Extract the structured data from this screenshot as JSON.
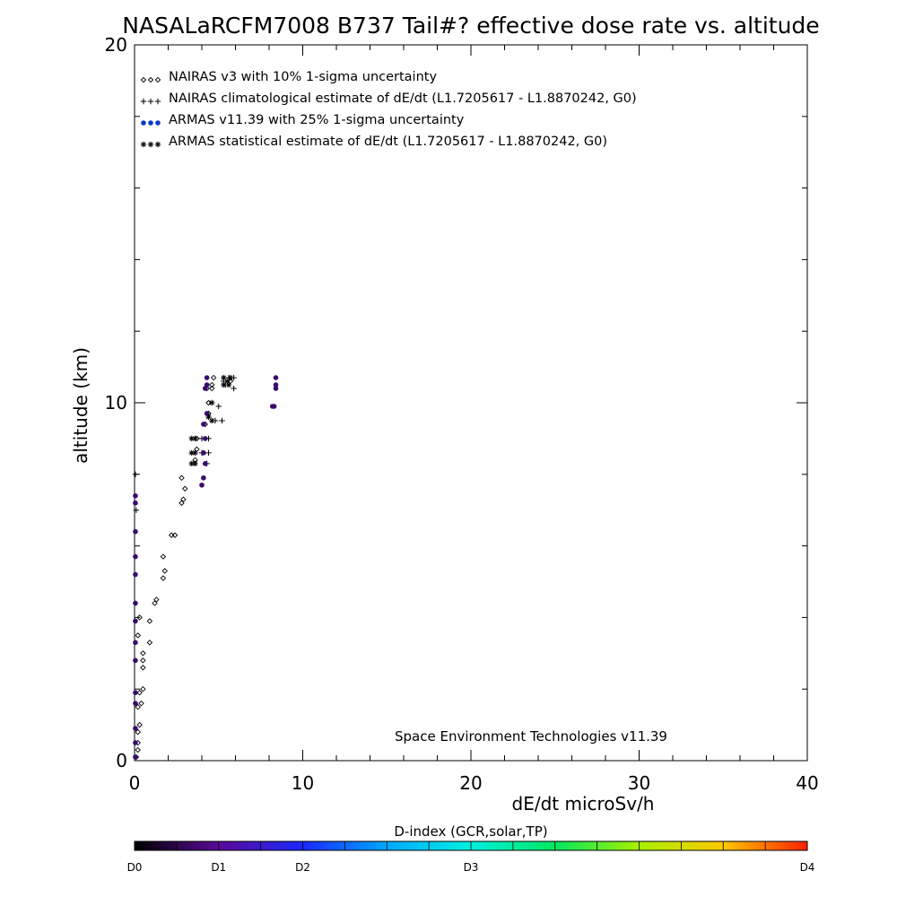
{
  "chart_data": {
    "type": "scatter",
    "title": "NASALaRCFM7008  B737 Tail#? effective dose rate vs. altitude",
    "xlabel": "dE/dt microSv/h",
    "ylabel": "altitude (km)",
    "xlim": [
      0,
      40
    ],
    "ylim": [
      0,
      20
    ],
    "x_tick_labels": [
      0,
      10,
      20,
      30,
      40
    ],
    "y_tick_labels": [
      0,
      10,
      20
    ],
    "grid": false,
    "legend_position": "top-left",
    "series": [
      {
        "name": "NAIRAS v3 with 10% 1-sigma uncertainty",
        "marker": "diamond",
        "color": "#000000",
        "points": [
          [
            0.1,
            0.1
          ],
          [
            0.2,
            0.3
          ],
          [
            0.2,
            0.5
          ],
          [
            0.2,
            0.8
          ],
          [
            0.3,
            1.0
          ],
          [
            0.2,
            1.5
          ],
          [
            0.4,
            1.6
          ],
          [
            0.3,
            1.9
          ],
          [
            0.5,
            2.0
          ],
          [
            0.5,
            2.6
          ],
          [
            0.5,
            2.8
          ],
          [
            0.5,
            3.0
          ],
          [
            0.9,
            3.3
          ],
          [
            0.2,
            3.5
          ],
          [
            0.9,
            3.9
          ],
          [
            0.3,
            4.0
          ],
          [
            1.2,
            4.4
          ],
          [
            1.3,
            4.5
          ],
          [
            1.7,
            5.1
          ],
          [
            1.8,
            5.3
          ],
          [
            1.7,
            5.7
          ],
          [
            2.2,
            6.3
          ],
          [
            2.4,
            6.3
          ],
          [
            2.8,
            7.2
          ],
          [
            2.9,
            7.3
          ],
          [
            3.0,
            7.6
          ],
          [
            2.8,
            7.9
          ],
          [
            3.6,
            8.4
          ],
          [
            3.7,
            8.7
          ],
          [
            3.7,
            9.0
          ],
          [
            4.2,
            9.4
          ],
          [
            4.4,
            9.7
          ],
          [
            4.4,
            10.0
          ],
          [
            4.3,
            10.4
          ],
          [
            4.6,
            10.5
          ],
          [
            4.7,
            10.7
          ],
          [
            5.7,
            10.6
          ],
          [
            4.6,
            10.4
          ]
        ]
      },
      {
        "name": "NAIRAS climatological estimate of dE/dt (L1.7205617 - L1.8870242, G0)",
        "marker": "plus",
        "color": "#000000",
        "points": [
          [
            0.05,
            8.0
          ],
          [
            0.1,
            7.0
          ],
          [
            4.4,
            9.0
          ],
          [
            4.4,
            8.6
          ],
          [
            4.3,
            8.3
          ],
          [
            4.8,
            9.5
          ],
          [
            5.0,
            9.9
          ],
          [
            5.2,
            9.5
          ],
          [
            5.3,
            10.6
          ],
          [
            5.9,
            10.4
          ],
          [
            5.6,
            10.7
          ],
          [
            5.9,
            10.7
          ],
          [
            5.4,
            10.5
          ],
          [
            4.0,
            9.0
          ],
          [
            4.0,
            8.6
          ]
        ]
      },
      {
        "name": "ARMAS v11.39 with 25% 1-sigma uncertainty",
        "marker": "filled-circle",
        "color": "#0a38c8",
        "points": [
          [
            0.05,
            0.1
          ],
          [
            0.05,
            0.5
          ],
          [
            0.05,
            0.9
          ],
          [
            0.05,
            1.6
          ],
          [
            0.05,
            1.9
          ],
          [
            0.05,
            2.8
          ],
          [
            0.05,
            3.3
          ],
          [
            0.05,
            3.9
          ],
          [
            0.05,
            4.4
          ],
          [
            0.05,
            5.2
          ],
          [
            0.05,
            5.7
          ],
          [
            0.05,
            6.4
          ],
          [
            0.05,
            7.2
          ],
          [
            0.05,
            7.4
          ],
          [
            4.0,
            7.7
          ],
          [
            4.1,
            7.9
          ],
          [
            4.2,
            8.3
          ],
          [
            4.1,
            8.6
          ],
          [
            4.2,
            9.0
          ],
          [
            4.1,
            9.4
          ],
          [
            4.3,
            9.7
          ],
          [
            4.2,
            10.4
          ],
          [
            4.3,
            10.5
          ],
          [
            4.3,
            10.7
          ],
          [
            8.2,
            9.9
          ],
          [
            8.3,
            9.9
          ],
          [
            8.4,
            10.4
          ],
          [
            8.4,
            10.5
          ],
          [
            8.4,
            10.7
          ]
        ]
      },
      {
        "name": "ARMAS statistical estimate of dE/dt (L1.7205617 - L1.8870242, G0)",
        "marker": "asterisk",
        "color": "#000000",
        "points": [
          [
            3.4,
            9.0
          ],
          [
            3.6,
            9.0
          ],
          [
            3.4,
            8.6
          ],
          [
            3.6,
            8.6
          ],
          [
            3.4,
            8.3
          ],
          [
            3.6,
            8.3
          ],
          [
            4.6,
            9.5
          ],
          [
            4.4,
            9.6
          ],
          [
            4.6,
            10.0
          ],
          [
            5.3,
            10.5
          ],
          [
            5.5,
            10.6
          ],
          [
            5.7,
            10.7
          ],
          [
            5.6,
            10.5
          ],
          [
            5.3,
            10.7
          ]
        ]
      }
    ],
    "annotation": "Space Environment Technologies v11.39",
    "colorbar": {
      "title": "D-index (GCR,solar,TP)",
      "labels": [
        "D0",
        "D1",
        "D2",
        "D3",
        "D4"
      ],
      "label_positions": [
        0,
        0.125,
        0.25,
        0.5,
        1.0
      ]
    }
  }
}
